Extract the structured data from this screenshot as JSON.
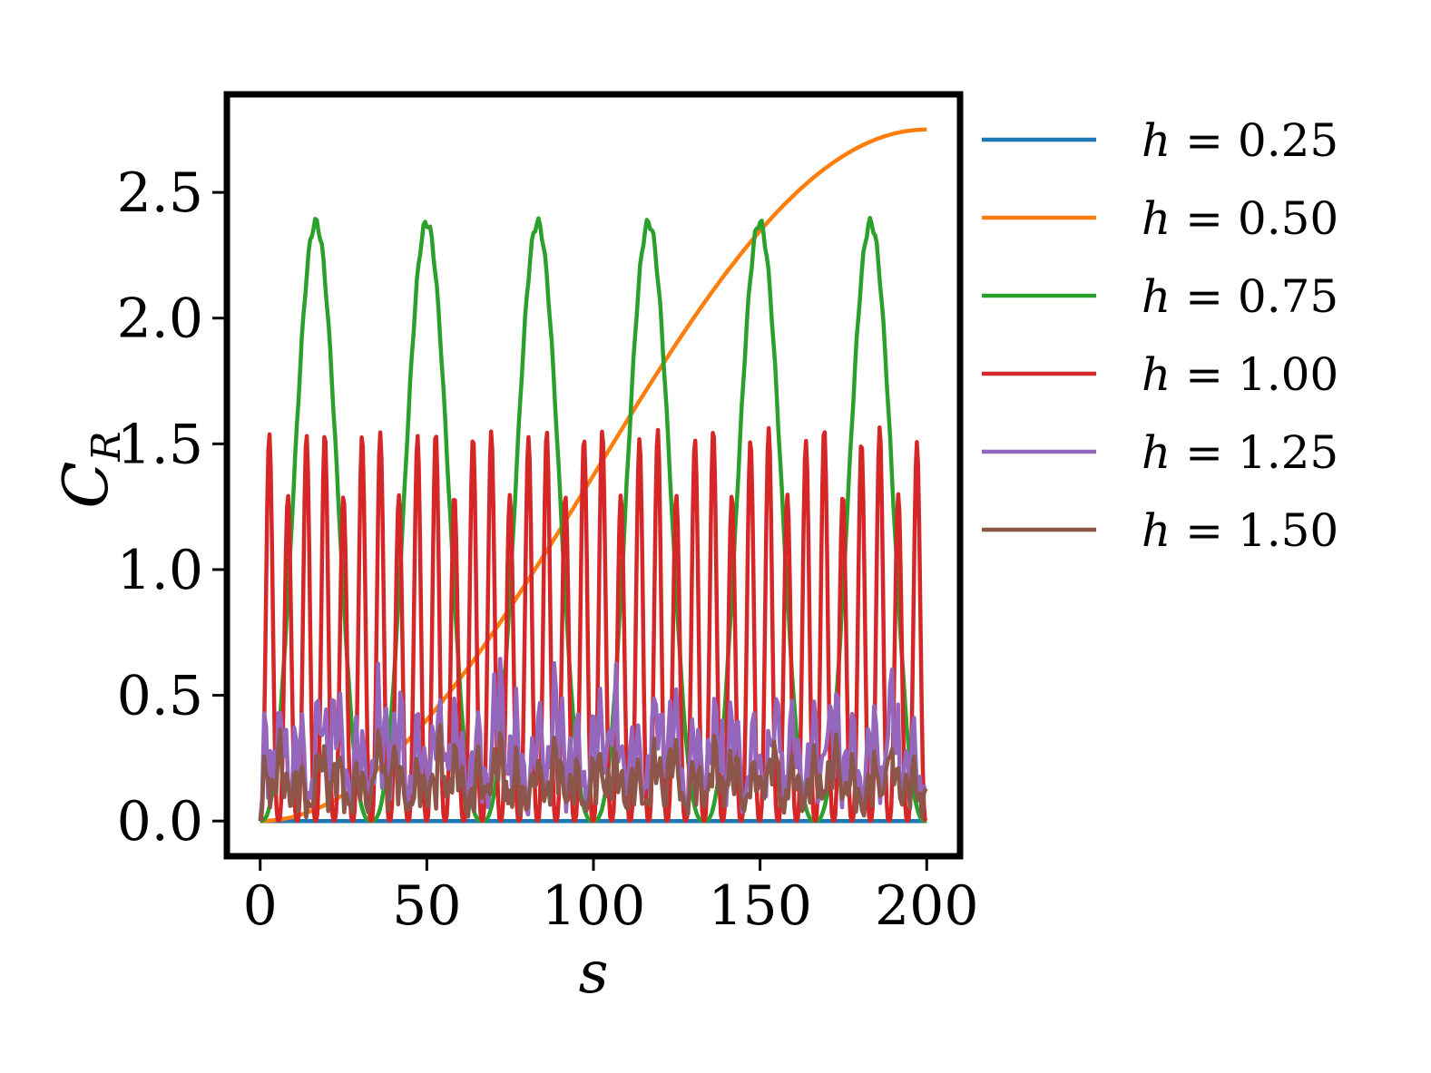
{
  "chart_data": {
    "type": "line",
    "xlabel": "s",
    "ylabel": "C",
    "ylabel_sub": "R",
    "xlim": [
      -10,
      210
    ],
    "ylim": [
      -0.14,
      2.89
    ],
    "xticks": [
      0,
      50,
      100,
      150,
      200
    ],
    "xtick_labels": [
      "0",
      "50",
      "100",
      "150",
      "200"
    ],
    "yticks": [
      0.0,
      0.5,
      1.0,
      1.5,
      2.0,
      2.5
    ],
    "ytick_labels": [
      "0.0",
      "0.5",
      "1.0",
      "1.5",
      "2.0",
      "2.5"
    ],
    "grid": false,
    "legend_position": "outside-right",
    "series": [
      {
        "name": "h = 0.25",
        "label_var": "h",
        "label_rest": " = 0.25",
        "color": "#1f77b4",
        "kind": "flat",
        "value": 0.0
      },
      {
        "name": "h = 0.50",
        "label_var": "h",
        "label_rest": " = 0.50",
        "color": "#ff7f0e",
        "kind": "sigmoid",
        "start": 0.0,
        "end": 2.75
      },
      {
        "name": "h = 0.75",
        "label_var": "h",
        "label_rest": " = 0.75",
        "color": "#2ca02c",
        "kind": "periodic",
        "period": 33.3,
        "peak": 2.38,
        "peak_s": [
          16.7,
          50.0,
          83.3,
          116.6,
          150.0,
          183.3
        ]
      },
      {
        "name": "h = 1.00",
        "label_var": "h",
        "label_rest": " = 1.00",
        "color": "#d62728",
        "kind": "oscillating",
        "period": 5.55,
        "max": 1.62,
        "min": 0.0
      },
      {
        "name": "h = 1.25",
        "label_var": "h",
        "label_rest": " = 1.25",
        "color": "#9467bd",
        "kind": "noisy",
        "max": 0.75,
        "min": 0.0
      },
      {
        "name": "h = 1.50",
        "label_var": "h",
        "label_rest": " = 1.50",
        "color": "#8c564b",
        "kind": "noisy",
        "max": 0.43,
        "min": 0.0
      }
    ]
  }
}
